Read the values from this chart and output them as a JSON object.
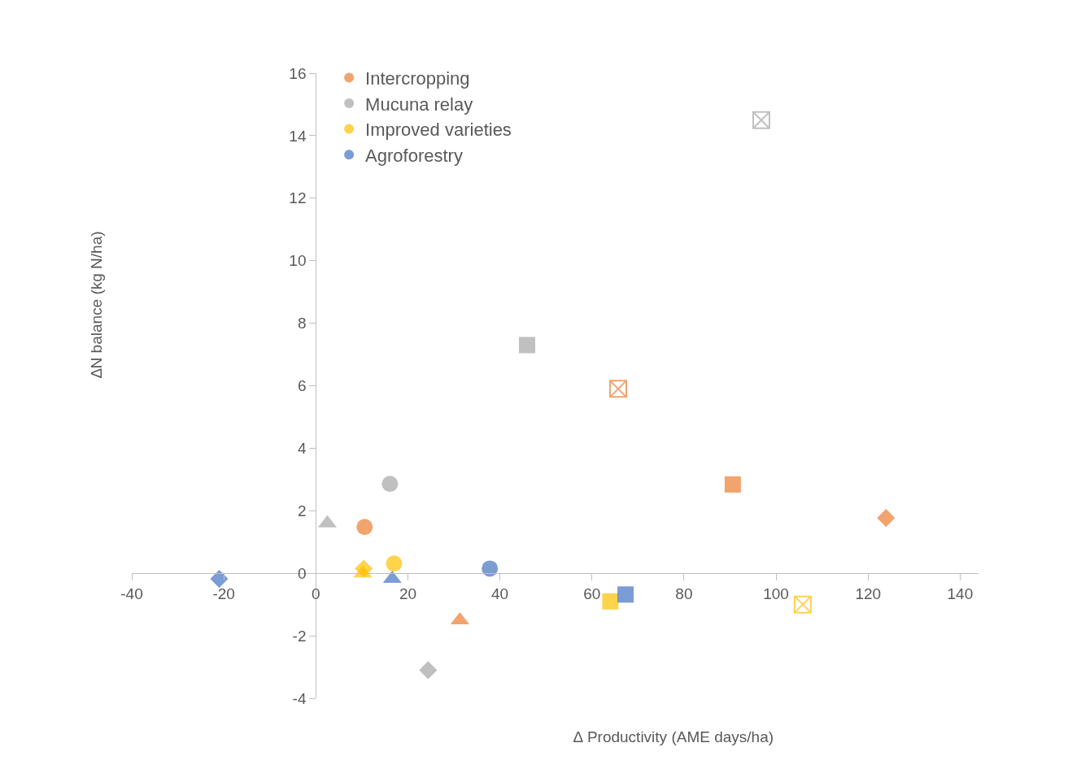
{
  "chart_data": {
    "type": "scatter",
    "xlabel": "∆ Productivity (AME days/ha)",
    "ylabel": "∆N balance (kg N/ha)",
    "xlim": [
      -40,
      144
    ],
    "xticks": [
      -40,
      -20,
      0,
      20,
      40,
      60,
      80,
      100,
      120,
      140
    ],
    "ylim": [
      -4,
      16
    ],
    "yticks": [
      -4,
      -2,
      0,
      2,
      4,
      6,
      8,
      10,
      12,
      14,
      16
    ],
    "legend": "top left",
    "series": [
      {
        "name": "Intercropping",
        "color": "#ed7d31",
        "marker": "circle",
        "x": [
          10.6
        ],
        "values": [
          1.48
        ]
      },
      {
        "name": "Mucuna relay",
        "color": "#a5a5a5",
        "marker": "circle",
        "x": [
          16.1
        ],
        "values": [
          2.86
        ]
      },
      {
        "name": "Improved varieties",
        "color": "#ffc000",
        "marker": "circle",
        "x": [
          17.0
        ],
        "values": [
          0.31
        ]
      },
      {
        "name": "Agroforestry",
        "color": "#4472c4",
        "marker": "circle",
        "x": [
          37.8
        ],
        "values": [
          0.15
        ]
      },
      {
        "color": "#ed7d31",
        "marker": "square",
        "x": [
          90.6
        ],
        "values": [
          2.84
        ]
      },
      {
        "color": "#ed7d31",
        "marker": "diamond",
        "x": [
          123.9
        ],
        "values": [
          1.77
        ]
      },
      {
        "color": "#ed7d31",
        "marker": "triangle",
        "x": [
          31.3
        ],
        "values": [
          -1.5
        ]
      },
      {
        "color": "#ed7d31",
        "marker": "cross",
        "x": [
          65.7
        ],
        "values": [
          5.9
        ]
      },
      {
        "color": "#a5a5a5",
        "marker": "triangle",
        "x": [
          2.5
        ],
        "values": [
          1.6
        ]
      },
      {
        "color": "#a5a5a5",
        "marker": "square",
        "x": [
          45.9
        ],
        "values": [
          7.3
        ]
      },
      {
        "color": "#a5a5a5",
        "marker": "diamond",
        "x": [
          24.4
        ],
        "values": [
          -3.1
        ]
      },
      {
        "color": "#a5a5a5",
        "marker": "cross",
        "x": [
          96.8
        ],
        "values": [
          14.5
        ]
      },
      {
        "color": "#ffc000",
        "marker": "diamond",
        "x": [
          10.4
        ],
        "values": [
          0.15
        ]
      },
      {
        "color": "#ffc000",
        "marker": "triangle",
        "x": [
          10.2
        ],
        "values": [
          0.0
        ]
      },
      {
        "color": "#ffc000",
        "marker": "square",
        "x": [
          64.0
        ],
        "values": [
          -0.9
        ]
      },
      {
        "color": "#ffc000",
        "marker": "cross",
        "x": [
          105.8
        ],
        "values": [
          -1.0
        ]
      },
      {
        "color": "#4472c4",
        "marker": "diamond",
        "x": [
          -21.0
        ],
        "values": [
          -0.18
        ]
      },
      {
        "color": "#4472c4",
        "marker": "triangle",
        "x": [
          16.6
        ],
        "values": [
          -0.18
        ]
      },
      {
        "color": "#4472c4",
        "marker": "square",
        "x": [
          67.3
        ],
        "values": [
          -0.68
        ]
      }
    ]
  }
}
